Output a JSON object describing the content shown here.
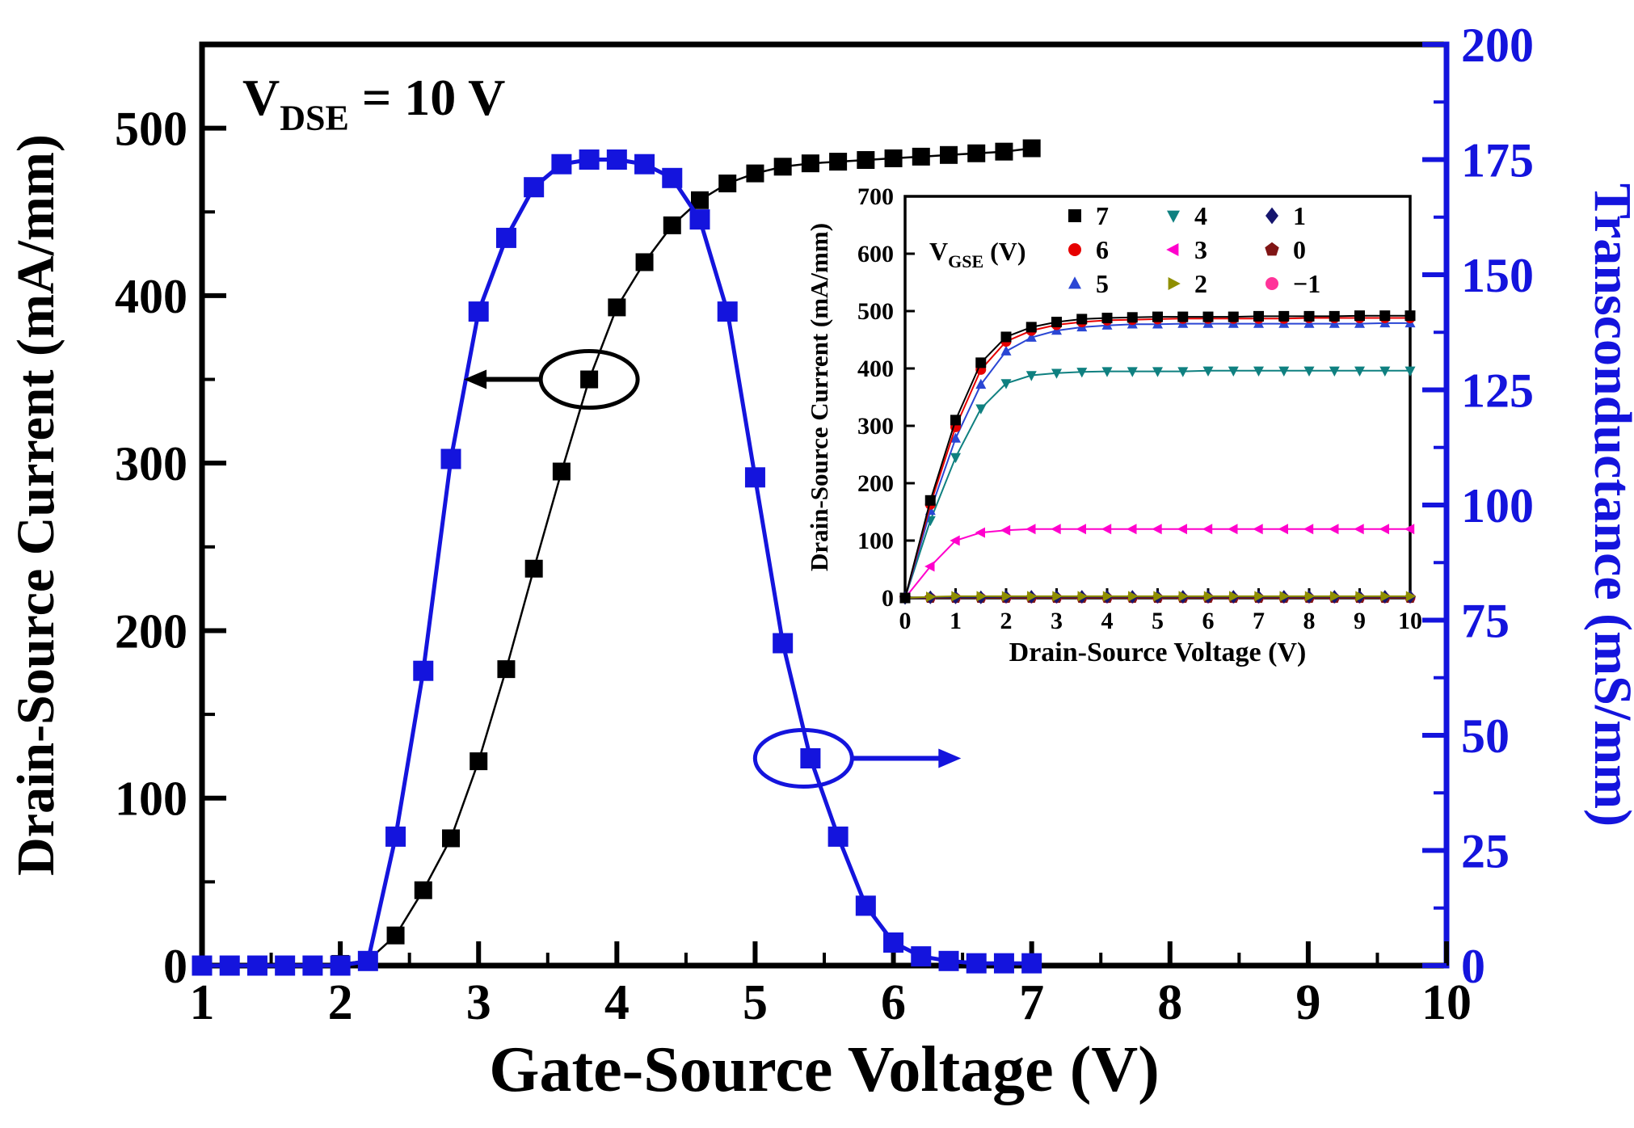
{
  "figure": {
    "background": "#ffffff"
  },
  "colors": {
    "black": "#000000",
    "blue": "#1414dd"
  },
  "annotation": {
    "pre": "V",
    "sub": "DSE",
    "post": " = 10 V"
  },
  "chart_data": [
    {
      "id": "main",
      "type": "line",
      "xlabel": "Gate-Source Voltage (V)",
      "ylabel_left": "Drain-Source Current (mA/mm)",
      "ylabel_right": "Transconductance (mS/mm)",
      "xlim": [
        1,
        10
      ],
      "ylim_left": [
        0,
        550
      ],
      "ylim_right": [
        0,
        200
      ],
      "xticks": [
        1,
        2,
        3,
        4,
        5,
        6,
        7,
        8,
        9,
        10
      ],
      "yticks_left": [
        0,
        100,
        200,
        300,
        400,
        500
      ],
      "yticks_right": [
        0,
        25,
        50,
        75,
        100,
        125,
        150,
        175,
        200
      ],
      "grid": false,
      "series": [
        {
          "name": "drain-source-current",
          "axis": "left",
          "color": "#000000",
          "marker": "square",
          "line_width": 2.5,
          "marker_size": 11,
          "x": [
            1.0,
            1.2,
            1.4,
            1.6,
            1.8,
            2.0,
            2.2,
            2.4,
            2.6,
            2.8,
            3.0,
            3.2,
            3.4,
            3.6,
            3.8,
            4.0,
            4.2,
            4.4,
            4.6,
            4.8,
            5.0,
            5.2,
            5.4,
            5.6,
            5.8,
            6.0,
            6.2,
            6.4,
            6.6,
            6.8,
            7.0
          ],
          "y": [
            0,
            0,
            0,
            0,
            0,
            1,
            3,
            18,
            45,
            76,
            122,
            177,
            237,
            295,
            350,
            393,
            420,
            442,
            457,
            467,
            473,
            477,
            479,
            480,
            481,
            482,
            483,
            484,
            485,
            486,
            488
          ]
        },
        {
          "name": "transconductance",
          "axis": "right",
          "color": "#1414dd",
          "marker": "square",
          "line_width": 5,
          "marker_size": 12.5,
          "x": [
            1.0,
            1.2,
            1.4,
            1.6,
            1.8,
            2.0,
            2.2,
            2.4,
            2.6,
            2.8,
            3.0,
            3.2,
            3.4,
            3.6,
            3.8,
            4.0,
            4.2,
            4.4,
            4.6,
            4.8,
            5.0,
            5.2,
            5.4,
            5.6,
            5.8,
            6.0,
            6.2,
            6.4,
            6.6,
            6.8,
            7.0
          ],
          "y": [
            0,
            0,
            0,
            0,
            0,
            0,
            1,
            28,
            64,
            110,
            142,
            158,
            169,
            174,
            175,
            175,
            174,
            171,
            162,
            142,
            106,
            70,
            45,
            28,
            13,
            5,
            2,
            1,
            0.5,
            0.5,
            0.5
          ]
        }
      ],
      "pointers": [
        {
          "axis": "left",
          "x": 3.8,
          "y": 350,
          "dir": "left",
          "len": 95,
          "color": "#000000"
        },
        {
          "axis": "right",
          "x": 5.35,
          "y": 45,
          "dir": "right",
          "len": 135,
          "color": "#1414dd"
        }
      ]
    },
    {
      "id": "inset",
      "type": "line",
      "xlabel": "Drain-Source Voltage (V)",
      "ylabel": "Drain-Source Current (mA/mm)",
      "xlim": [
        0,
        10
      ],
      "ylim": [
        0,
        700
      ],
      "xticks": [
        0,
        1,
        2,
        3,
        4,
        5,
        6,
        7,
        8,
        9,
        10
      ],
      "yticks": [
        0,
        100,
        200,
        300,
        400,
        500,
        600,
        700
      ],
      "legend_title": {
        "pre": "V",
        "sub": "GSE",
        "post": " (V)"
      },
      "legend_columns": [
        [
          "7",
          "6",
          "5"
        ],
        [
          "4",
          "3",
          "2"
        ],
        [
          "1",
          "0",
          "−1"
        ]
      ],
      "x": [
        0,
        0.5,
        1,
        1.5,
        2,
        2.5,
        3,
        3.5,
        4,
        4.5,
        5,
        5.5,
        6,
        6.5,
        7,
        7.5,
        8,
        8.5,
        9,
        9.5,
        10
      ],
      "series": [
        {
          "label": "7",
          "color": "#000000",
          "marker": "square",
          "y": [
            0,
            170,
            310,
            410,
            455,
            472,
            481,
            486,
            488,
            489,
            490,
            490,
            490,
            490,
            491,
            491,
            491,
            491,
            492,
            492,
            492
          ]
        },
        {
          "label": "6",
          "color": "#e60000",
          "marker": "circle",
          "y": [
            0,
            163,
            298,
            398,
            447,
            466,
            476,
            481,
            484,
            485,
            486,
            487,
            487,
            487,
            487,
            487,
            488,
            488,
            488,
            488,
            488
          ]
        },
        {
          "label": "5",
          "color": "#2a46d4",
          "marker": "triangle-up",
          "y": [
            0,
            152,
            278,
            372,
            430,
            454,
            466,
            472,
            475,
            477,
            477,
            478,
            478,
            478,
            478,
            478,
            478,
            478,
            478,
            479,
            479
          ]
        },
        {
          "label": "4",
          "color": "#0f8080",
          "marker": "triangle-down",
          "y": [
            0,
            135,
            245,
            330,
            374,
            388,
            392,
            394,
            395,
            395,
            395,
            395,
            396,
            396,
            396,
            396,
            396,
            396,
            396,
            396,
            396
          ]
        },
        {
          "label": "3",
          "color": "#ff00cc",
          "marker": "triangle-left",
          "y": [
            0,
            55,
            100,
            114,
            118,
            120,
            120,
            120,
            120,
            120,
            120,
            120,
            120,
            120,
            120,
            120,
            120,
            120,
            120,
            120,
            120
          ]
        },
        {
          "label": "2",
          "color": "#8f8f00",
          "marker": "triangle-right",
          "y": [
            0,
            2,
            3,
            3,
            3,
            3,
            3,
            3,
            3,
            3,
            3,
            3,
            3,
            3,
            3,
            3,
            3,
            3,
            3,
            3,
            3
          ]
        },
        {
          "label": "1",
          "color": "#16166e",
          "marker": "diamond",
          "y": [
            0,
            1,
            1,
            1,
            2,
            2,
            2,
            2,
            2,
            2,
            2,
            2,
            2,
            2,
            2,
            2,
            2,
            2,
            2,
            2,
            2
          ]
        },
        {
          "label": "0",
          "color": "#801515",
          "marker": "pentagon",
          "y": [
            0,
            0,
            0,
            0,
            0,
            0,
            0,
            0,
            0,
            0,
            0,
            0,
            0,
            0,
            0,
            0,
            0,
            0,
            0,
            0,
            0
          ]
        },
        {
          "label": "−1",
          "color": "#ff3399",
          "marker": "circle",
          "y": [
            0,
            0,
            0,
            0,
            0,
            0,
            0,
            0,
            0,
            0,
            0,
            0,
            0,
            0,
            0,
            0,
            0,
            0,
            0,
            0,
            0
          ]
        }
      ]
    }
  ]
}
